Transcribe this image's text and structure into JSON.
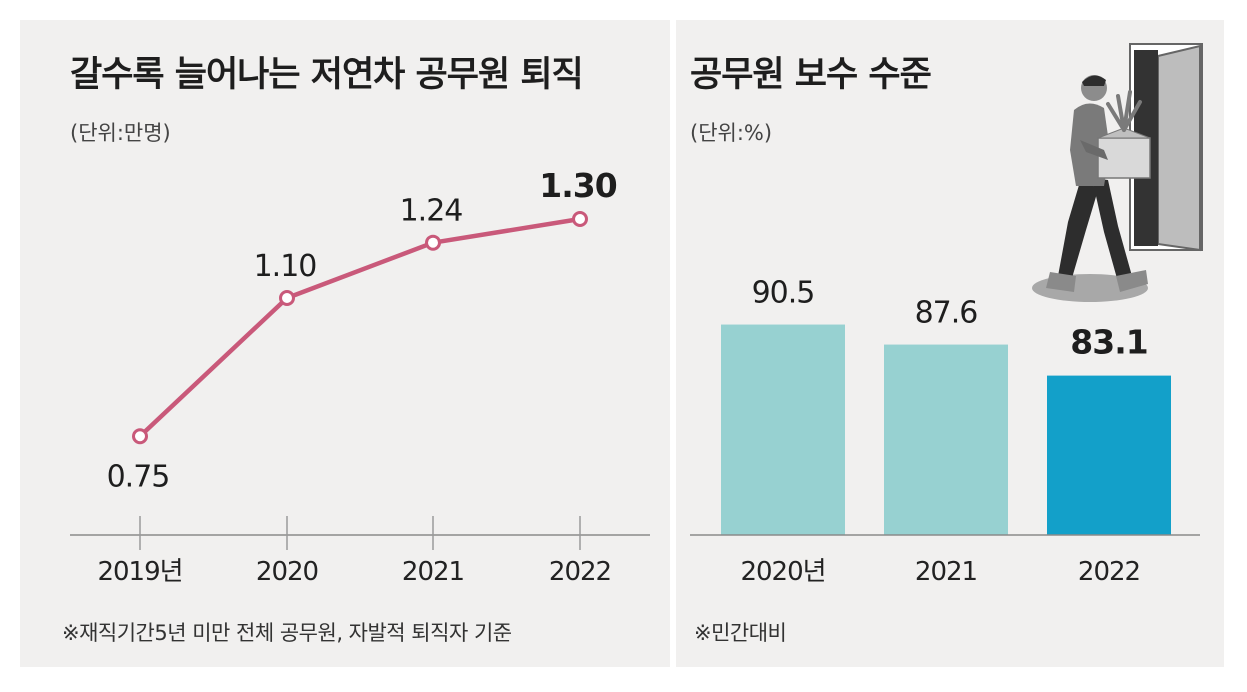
{
  "colors": {
    "line": "#c9597a",
    "bar_light": "#97d1d1",
    "bar_highlight": "#13a0c9",
    "panel_bg": "#f1f0ef"
  },
  "chart_data": [
    {
      "type": "line",
      "title": "갈수록 늘어나는 저연차 공무원 퇴직",
      "unit_label": "(단위:만명)",
      "categories": [
        "2019년",
        "2020",
        "2021",
        "2022"
      ],
      "series": [
        {
          "name": "저연차 공무원 퇴직",
          "values": [
            0.75,
            1.1,
            1.24,
            1.3
          ],
          "labels": [
            "0.75",
            "1.10",
            "1.24",
            "1.30"
          ]
        }
      ],
      "ylim": [
        0.5,
        1.5
      ],
      "xlabel": "",
      "ylabel": "",
      "footnote": "※재직기간5년 미만 전체 공무원, 자발적 퇴직자 기준"
    },
    {
      "type": "bar",
      "title": "공무원 보수 수준",
      "unit_label": "(단위:%)",
      "categories": [
        "2020년",
        "2021",
        "2022"
      ],
      "values": [
        90.5,
        87.6,
        83.1
      ],
      "labels": [
        "90.5",
        "87.6",
        "83.1"
      ],
      "ylim": [
        60,
        100
      ],
      "xlabel": "",
      "ylabel": "",
      "footnote": "※민간대비"
    }
  ]
}
